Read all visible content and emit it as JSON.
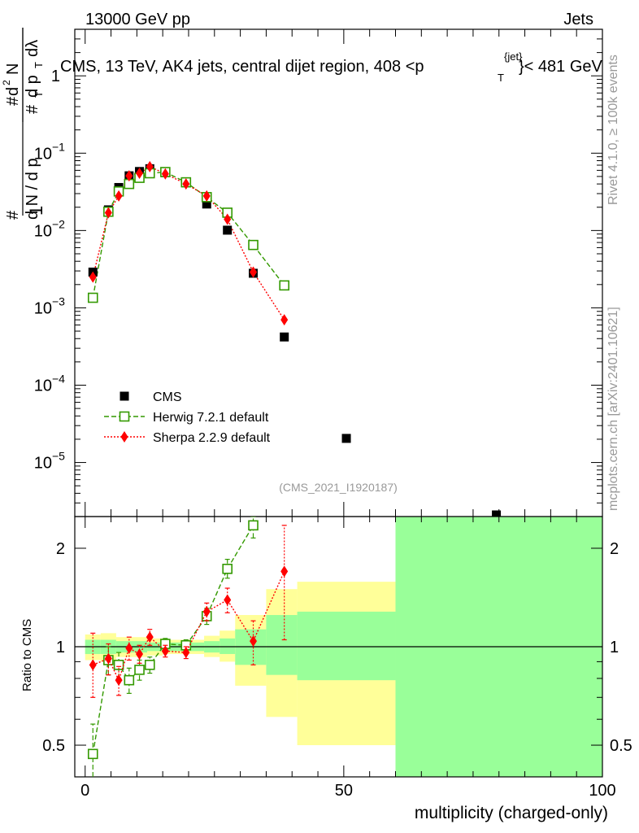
{
  "header": {
    "left": "13000 GeV pp",
    "right": "Jets"
  },
  "side_labels": {
    "rivet": "Rivet 4.1.0, ≥ 100k events",
    "mcplots": "mcplots.cern.ch [arXiv:2401.10621]"
  },
  "plot_title": {
    "main": "CMS, 13 TeV, AK4 jets, central dijet region, 408 <p",
    "sup": "{jet}",
    "sub": "T",
    "tail": "}< 481 GeV"
  },
  "analysis_tag": "(CMS_2021_I1920187)",
  "chart_data": [
    {
      "type": "scatter",
      "name": "main",
      "ylabel": "1/(dN/dpT) d²N/(dpT dλ)",
      "yscale": "log",
      "ylim": [
        2e-06,
        4.0
      ],
      "xlim": [
        -2,
        100
      ],
      "y_ticks": [
        {
          "value": 1e-05,
          "base": "10",
          "exp": "−5"
        },
        {
          "value": 0.0001,
          "base": "10",
          "exp": "−4"
        },
        {
          "value": 0.001,
          "base": "10",
          "exp": "−3"
        },
        {
          "value": 0.01,
          "base": "10",
          "exp": "−2"
        },
        {
          "value": 0.1,
          "base": "10",
          "exp": "−1"
        },
        {
          "value": 1,
          "base": "1",
          "exp": ""
        }
      ],
      "legend_position": "lower-left",
      "series": [
        {
          "name": "CMS",
          "color": "#000000",
          "marker": "filled-square",
          "points": [
            {
              "x": 1.5,
              "y": 0.0029
            },
            {
              "x": 4.5,
              "y": 0.0185
            },
            {
              "x": 6.5,
              "y": 0.036
            },
            {
              "x": 8.5,
              "y": 0.051
            },
            {
              "x": 10.5,
              "y": 0.058
            },
            {
              "x": 12.5,
              "y": 0.063
            },
            {
              "x": 15.5,
              "y": 0.056
            },
            {
              "x": 19.5,
              "y": 0.042
            },
            {
              "x": 23.5,
              "y": 0.022
            },
            {
              "x": 27.5,
              "y": 0.0101
            },
            {
              "x": 32.5,
              "y": 0.0028
            },
            {
              "x": 38.5,
              "y": 0.00042
            },
            {
              "x": 50.5,
              "y": 2.05e-05
            },
            {
              "x": 79.5,
              "y": 2.1e-06
            }
          ]
        },
        {
          "name": "Herwig 7.2.1 default",
          "color": "#339900",
          "marker": "open-square",
          "line": "dashed",
          "points": [
            {
              "x": 1.5,
              "y": 0.00135
            },
            {
              "x": 4.5,
              "y": 0.0175
            },
            {
              "x": 6.5,
              "y": 0.032
            },
            {
              "x": 8.5,
              "y": 0.04
            },
            {
              "x": 10.5,
              "y": 0.048
            },
            {
              "x": 12.5,
              "y": 0.055
            },
            {
              "x": 15.5,
              "y": 0.057
            },
            {
              "x": 19.5,
              "y": 0.042
            },
            {
              "x": 23.5,
              "y": 0.027
            },
            {
              "x": 27.5,
              "y": 0.017
            },
            {
              "x": 32.5,
              "y": 0.0065
            },
            {
              "x": 38.5,
              "y": 0.00195
            }
          ]
        },
        {
          "name": "Sherpa 2.2.9 default",
          "color": "#ff0000",
          "marker": "filled-diamond",
          "line": "dotted",
          "points": [
            {
              "x": 1.5,
              "y": 0.0025
            },
            {
              "x": 4.5,
              "y": 0.017
            },
            {
              "x": 6.5,
              "y": 0.028
            },
            {
              "x": 8.5,
              "y": 0.051
            },
            {
              "x": 10.5,
              "y": 0.055
            },
            {
              "x": 12.5,
              "y": 0.067
            },
            {
              "x": 15.5,
              "y": 0.054
            },
            {
              "x": 19.5,
              "y": 0.04
            },
            {
              "x": 23.5,
              "y": 0.028
            },
            {
              "x": 27.5,
              "y": 0.014
            },
            {
              "x": 32.5,
              "y": 0.0029
            },
            {
              "x": 38.5,
              "y": 0.0007
            }
          ]
        }
      ]
    },
    {
      "type": "scatter",
      "name": "ratio",
      "ylabel": "Ratio to CMS",
      "xlabel": "multiplicity (charged-only)",
      "yscale": "log",
      "ylim": [
        0.4,
        2.5
      ],
      "xlim": [
        -2,
        100
      ],
      "x_ticks": [
        0,
        50,
        100
      ],
      "y_ticks": [
        0.5,
        1,
        2
      ],
      "bands": [
        {
          "x0": 0,
          "x1": 3,
          "yellow": [
            0.91,
            1.09
          ],
          "green": [
            0.95,
            1.05
          ]
        },
        {
          "x0": 3,
          "x1": 6,
          "yellow": [
            0.9,
            1.1
          ],
          "green": [
            0.95,
            1.05
          ]
        },
        {
          "x0": 6,
          "x1": 9,
          "yellow": [
            0.93,
            1.07
          ],
          "green": [
            0.96,
            1.04
          ]
        },
        {
          "x0": 9,
          "x1": 12,
          "yellow": [
            0.93,
            1.07
          ],
          "green": [
            0.96,
            1.04
          ]
        },
        {
          "x0": 12,
          "x1": 15,
          "yellow": [
            0.94,
            1.06
          ],
          "green": [
            0.97,
            1.03
          ]
        },
        {
          "x0": 15,
          "x1": 19,
          "yellow": [
            0.95,
            1.05
          ],
          "green": [
            0.97,
            1.03
          ]
        },
        {
          "x0": 19,
          "x1": 23,
          "yellow": [
            0.95,
            1.05
          ],
          "green": [
            0.97,
            1.03
          ]
        },
        {
          "x0": 23,
          "x1": 26,
          "yellow": [
            0.93,
            1.08
          ],
          "green": [
            0.96,
            1.04
          ]
        },
        {
          "x0": 26,
          "x1": 29,
          "yellow": [
            0.9,
            1.12
          ],
          "green": [
            0.95,
            1.06
          ]
        },
        {
          "x0": 29,
          "x1": 35,
          "yellow": [
            0.76,
            1.25
          ],
          "green": [
            0.88,
            1.13
          ]
        },
        {
          "x0": 35,
          "x1": 41,
          "yellow": [
            0.61,
            1.5
          ],
          "green": [
            0.82,
            1.25
          ]
        },
        {
          "x0": 41,
          "x1": 60,
          "yellow": [
            0.5,
            1.58
          ],
          "green": [
            0.79,
            1.28
          ]
        },
        {
          "x0": 60,
          "x1": 100,
          "yellow": [
            0.4,
            2.5
          ],
          "green": [
            0.4,
            2.5
          ]
        }
      ],
      "series": [
        {
          "name": "Herwig 7.2.1 default",
          "color": "#339900",
          "marker": "open-square",
          "line": "dashed",
          "points": [
            {
              "x": 1.5,
              "y": 0.47,
              "lo": 0.38,
              "hi": 0.58
            },
            {
              "x": 4.5,
              "y": 0.91,
              "lo": 0.82,
              "hi": 1.0
            },
            {
              "x": 6.5,
              "y": 0.88,
              "lo": 0.8,
              "hi": 0.96
            },
            {
              "x": 8.5,
              "y": 0.79,
              "lo": 0.72,
              "hi": 0.86
            },
            {
              "x": 10.5,
              "y": 0.85,
              "lo": 0.79,
              "hi": 0.91
            },
            {
              "x": 12.5,
              "y": 0.88,
              "lo": 0.83,
              "hi": 0.93
            },
            {
              "x": 15.5,
              "y": 1.02,
              "lo": 0.98,
              "hi": 1.06
            },
            {
              "x": 19.5,
              "y": 1.01,
              "lo": 0.97,
              "hi": 1.05
            },
            {
              "x": 23.5,
              "y": 1.24,
              "lo": 1.17,
              "hi": 1.31
            },
            {
              "x": 27.5,
              "y": 1.73,
              "lo": 1.62,
              "hi": 1.85
            },
            {
              "x": 32.5,
              "y": 2.35,
              "lo": 2.15,
              "hi": 2.5
            }
          ]
        },
        {
          "name": "Sherpa 2.2.9 default",
          "color": "#ff0000",
          "marker": "filled-diamond",
          "line": "dotted",
          "points": [
            {
              "x": 1.5,
              "y": 0.88,
              "lo": 0.7,
              "hi": 1.1
            },
            {
              "x": 4.5,
              "y": 0.92,
              "lo": 0.82,
              "hi": 1.02
            },
            {
              "x": 6.5,
              "y": 0.79,
              "lo": 0.71,
              "hi": 0.87
            },
            {
              "x": 8.5,
              "y": 0.99,
              "lo": 0.91,
              "hi": 1.07
            },
            {
              "x": 10.5,
              "y": 0.95,
              "lo": 0.89,
              "hi": 1.01
            },
            {
              "x": 12.5,
              "y": 1.07,
              "lo": 1.01,
              "hi": 1.13
            },
            {
              "x": 15.5,
              "y": 0.97,
              "lo": 0.93,
              "hi": 1.01
            },
            {
              "x": 19.5,
              "y": 0.96,
              "lo": 0.92,
              "hi": 1.0
            },
            {
              "x": 23.5,
              "y": 1.28,
              "lo": 1.2,
              "hi": 1.36
            },
            {
              "x": 27.5,
              "y": 1.39,
              "lo": 1.27,
              "hi": 1.51
            },
            {
              "x": 32.5,
              "y": 1.04,
              "lo": 0.88,
              "hi": 1.2
            },
            {
              "x": 38.5,
              "y": 1.7,
              "lo": 1.05,
              "hi": 2.35
            }
          ]
        }
      ]
    }
  ],
  "legend": [
    {
      "label": "CMS",
      "color": "#000000",
      "marker": "filled-square"
    },
    {
      "label": "Herwig 7.2.1 default",
      "color": "#339900",
      "marker": "open-square"
    },
    {
      "label": "Sherpa 2.2.9 default",
      "color": "#ff0000",
      "marker": "filled-diamond"
    }
  ],
  "colors": {
    "band_yellow": "#ffff99",
    "band_green": "#99ff99"
  }
}
